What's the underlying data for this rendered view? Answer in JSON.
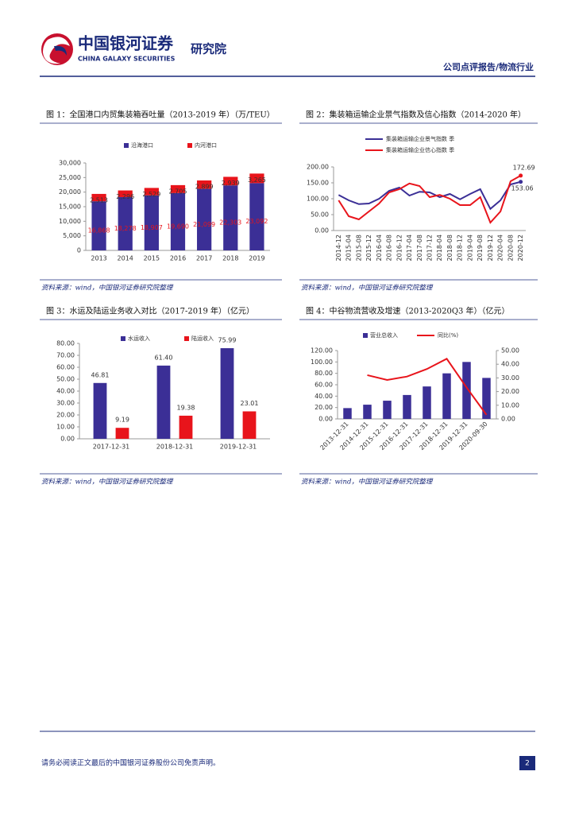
{
  "header": {
    "logo_cn": "中国银河证券",
    "logo_en": "CHINA GALAXY SECURITIES",
    "institute": "研究院",
    "report_type": "公司点评报告/物流行业"
  },
  "chart_data": [
    {
      "type": "bar",
      "stacked": true,
      "title": "图 1：全国港口内贸集装箱吞吐量（2013-2019 年）（万/TEU）",
      "categories": [
        "2013",
        "2014",
        "2015",
        "2016",
        "2017",
        "2018",
        "2019"
      ],
      "series": [
        {
          "name": "沿海港口",
          "color": "#3b2f96",
          "values": [
            16868,
            18278,
            18907,
            19690,
            21099,
            22303,
            23092
          ],
          "value_labels": [
            "16,868",
            "18,278",
            "18,907",
            "19,690",
            "21,099",
            "22,303",
            "23,092"
          ]
        },
        {
          "name": "内河港口",
          "color": "#e8141b",
          "values": [
            2513,
            2296,
            2529,
            2705,
            2899,
            2939,
            3265
          ],
          "value_labels": [
            "2,513",
            "2,296",
            "2,529",
            "2,705",
            "2,899",
            "2,939",
            "3,265"
          ]
        }
      ],
      "ylim": [
        0,
        30000
      ],
      "yticks": [
        0,
        {
          "value": 5000,
          "label": "5,000"
        },
        {
          "value": 10000,
          "label": "10,000"
        },
        {
          "value": 15000,
          "label": "15,000"
        },
        {
          "value": 20000,
          "label": "20,000"
        },
        {
          "value": 25000,
          "label": "25,000"
        },
        {
          "value": 30000,
          "label": "30,000"
        }
      ],
      "legend": "top"
    },
    {
      "type": "line",
      "title": "图 2：集装箱运输企业景气指数及信心指数（2014-2020 年）",
      "categories": [
        "2014-12",
        "2015-04",
        "2015-08",
        "2015-12",
        "2016-04",
        "2016-08",
        "2016-12",
        "2017-04",
        "2017-08",
        "2017-12",
        "2018-04",
        "2018-08",
        "2018-12",
        "2019-04",
        "2019-08",
        "2019-12",
        "2020-04",
        "2020-08",
        "2020-12"
      ],
      "series": [
        {
          "name": "集装箱运输企业景气指数 季",
          "color": "#3b2f96",
          "values": [
            112,
            95,
            83,
            85,
            100,
            125,
            135,
            110,
            122,
            120,
            105,
            115,
            98,
            115,
            130,
            68,
            95,
            145,
            153.06
          ]
        },
        {
          "name": "集装箱运输企业信心指数 季",
          "color": "#e8141b",
          "values": [
            95,
            45,
            35,
            60,
            85,
            120,
            130,
            148,
            140,
            105,
            112,
            100,
            80,
            80,
            105,
            25,
            60,
            155,
            172.69
          ]
        }
      ],
      "ylim": [
        0,
        200
      ],
      "yticks": [
        {
          "value": 0,
          "label": "0.00"
        },
        {
          "value": 50,
          "label": "50.00"
        },
        {
          "value": 100,
          "label": "100.00"
        },
        {
          "value": 150,
          "label": "150.00"
        },
        {
          "value": 200,
          "label": "200.00"
        }
      ],
      "legend": "top-left"
    },
    {
      "type": "bar",
      "stacked": false,
      "title": "图 3：水运及陆运业务收入对比（2017-2019 年）（亿元）",
      "categories": [
        "2017-12-31",
        "2018-12-31",
        "2019-12-31"
      ],
      "series": [
        {
          "name": "水运收入",
          "color": "#3b2f96",
          "values": [
            46.81,
            61.4,
            75.99
          ],
          "value_labels": [
            "46.81",
            "61.40",
            "75.99"
          ]
        },
        {
          "name": "陆运收入",
          "color": "#e8141b",
          "values": [
            9.19,
            19.38,
            23.01
          ],
          "value_labels": [
            "9.19",
            "19.38",
            "23.01"
          ]
        }
      ],
      "ylim": [
        0,
        80
      ],
      "yticks": [
        {
          "value": 0,
          "label": "0.00"
        },
        {
          "value": 10,
          "label": "10.00"
        },
        {
          "value": 20,
          "label": "20.00"
        },
        {
          "value": 30,
          "label": "30.00"
        },
        {
          "value": 40,
          "label": "40.00"
        },
        {
          "value": 50,
          "label": "50.00"
        },
        {
          "value": 60,
          "label": "60.00"
        },
        {
          "value": 70,
          "label": "70.00"
        },
        {
          "value": 80,
          "label": "80.00"
        }
      ],
      "legend": "top"
    },
    {
      "type": "combo",
      "title": "图 4：中谷物流营收及增速（2013-2020Q3 年）（亿元）",
      "categories": [
        "2013-12-31",
        "2014-12-31",
        "2015-12-31",
        "2016-12-31",
        "2017-12-31",
        "2018-12-31",
        "2019-12-31",
        "2020-09-30"
      ],
      "series": [
        {
          "name": "营业总收入",
          "color": "#3b2f96",
          "values": [
            19,
            25,
            32,
            42,
            57,
            80,
            100,
            72
          ]
        },
        {
          "name": "同比(%)",
          "color": "#e8141b",
          "axis": "y2",
          "values": [
            null,
            32,
            28.5,
            31,
            36.5,
            44,
            23,
            3
          ]
        }
      ],
      "ylim": [
        0,
        120
      ],
      "yticks": [
        {
          "value": 0,
          "label": "0.00"
        },
        {
          "value": 20,
          "label": "20.00"
        },
        {
          "value": 40,
          "label": "40.00"
        },
        {
          "value": 60,
          "label": "60.00"
        },
        {
          "value": 80,
          "label": "80.00"
        },
        {
          "value": 100,
          "label": "100.00"
        },
        {
          "value": 120,
          "label": "120.00"
        }
      ],
      "y2lim": [
        0,
        50
      ],
      "y2ticks": [
        {
          "value": 0,
          "label": "0.00"
        },
        {
          "value": 10,
          "label": "10.00"
        },
        {
          "value": 20,
          "label": "20.00"
        },
        {
          "value": 30,
          "label": "30.00"
        },
        {
          "value": 40,
          "label": "40.00"
        },
        {
          "value": 50,
          "label": "50.00"
        }
      ],
      "legend": "top"
    }
  ],
  "sources": [
    "资料来源：wind，中国银河证券研究院整理",
    "资料来源：wind，中国银河证券研究院整理",
    "资料来源：wind，中国银河证券研究院整理",
    "资料来源：wind，中国银河证券研究院整理"
  ],
  "footer": {
    "disclaimer": "请务必阅读正文最后的中国银河证券股份公司免责声明。",
    "page": 2
  }
}
